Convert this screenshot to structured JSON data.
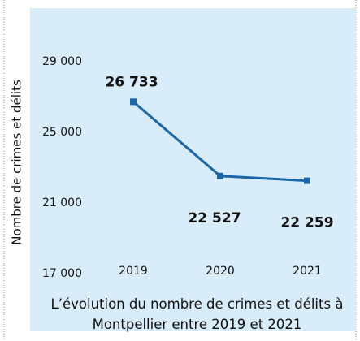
{
  "chart_data": {
    "type": "line",
    "title": "L’évolution du nombre de crimes et délits à Montpellier entre 2019 et 2021",
    "y_label": "Nombre de crimes et délits",
    "categories": [
      "2019",
      "2020",
      "2021"
    ],
    "series": [
      {
        "name": "Crimes et délits",
        "color": "#1a67a8",
        "values": [
          26733,
          22527,
          22259
        ],
        "value_labels": [
          "26 733",
          "22 527",
          "22 259"
        ]
      }
    ],
    "ylim": [
      17000,
      29000
    ],
    "yticks": [
      {
        "value": 17000,
        "label": "17 000"
      },
      {
        "value": 21000,
        "label": "21 000"
      },
      {
        "value": 25000,
        "label": "25 000"
      },
      {
        "value": 29000,
        "label": "29 000"
      }
    ],
    "grid": false
  }
}
